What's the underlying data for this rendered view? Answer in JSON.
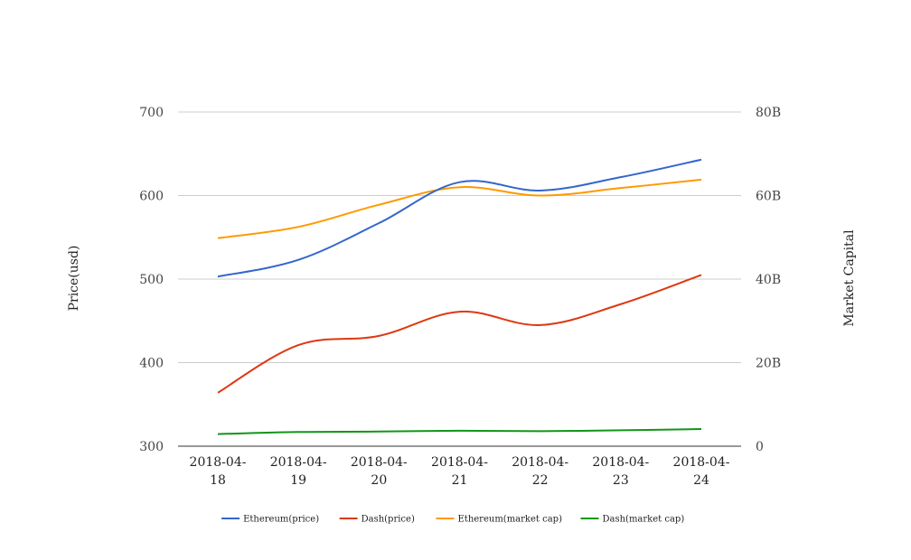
{
  "chart_data": {
    "type": "line",
    "x": [
      "2018-04-18",
      "2018-04-19",
      "2018-04-20",
      "2018-04-21",
      "2018-04-22",
      "2018-04-23",
      "2018-04-24"
    ],
    "x_tick_labels": [
      [
        "2018-04-",
        "18"
      ],
      [
        "2018-04-",
        "19"
      ],
      [
        "2018-04-",
        "20"
      ],
      [
        "2018-04-",
        "21"
      ],
      [
        "2018-04-",
        "22"
      ],
      [
        "2018-04-",
        "23"
      ],
      [
        "2018-04-",
        "24"
      ]
    ],
    "ylabel_left": "Price(usd)",
    "ylabel_right": "Market Capital",
    "ylim_left": [
      300,
      700
    ],
    "ylim_right": [
      0,
      80000000000
    ],
    "y_ticks_left": [
      "300",
      "400",
      "500",
      "600",
      "700"
    ],
    "y_ticks_right": [
      "0",
      "20B",
      "40B",
      "60B",
      "80B"
    ],
    "grid": true,
    "legend_position": "bottom",
    "series": [
      {
        "name": "Ethereum(price)",
        "axis": "left",
        "color": "#3366cc",
        "values": [
          503,
          523,
          567,
          616,
          606,
          622,
          643
        ]
      },
      {
        "name": "Dash(price)",
        "axis": "left",
        "color": "#dc3912",
        "values": [
          364,
          421,
          432,
          461,
          445,
          470,
          505
        ]
      },
      {
        "name": "Ethereum(market cap)",
        "axis": "right",
        "color": "#ff9900",
        "values": [
          49800000000,
          52500000000,
          57800000000,
          62000000000,
          60000000000,
          61800000000,
          63800000000
        ]
      },
      {
        "name": "Dash(market cap)",
        "axis": "right",
        "color": "#109618",
        "values": [
          2900000000,
          3400000000,
          3500000000,
          3700000000,
          3600000000,
          3800000000,
          4100000000
        ]
      }
    ]
  }
}
